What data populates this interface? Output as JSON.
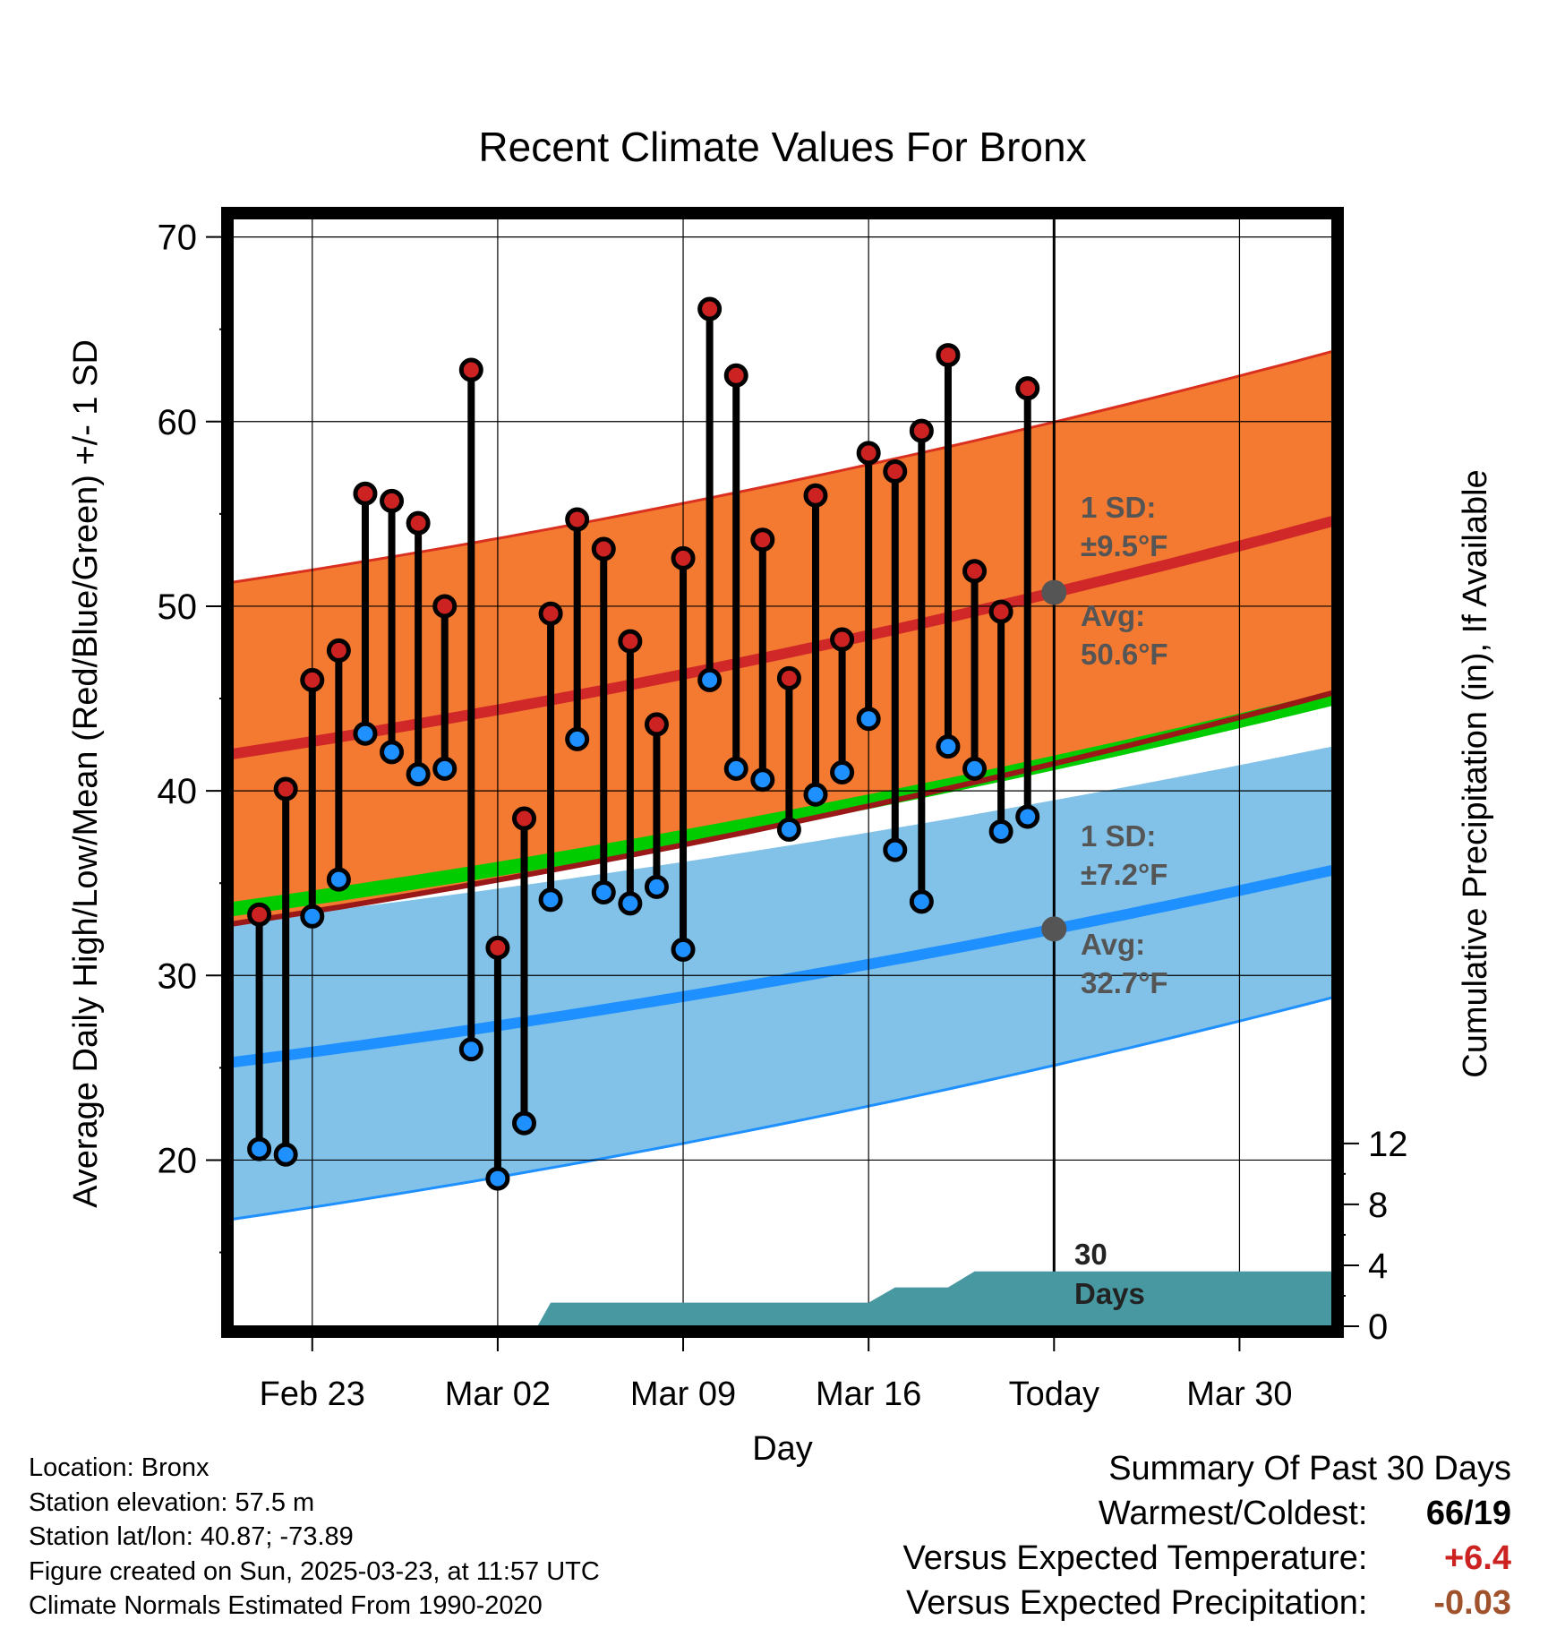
{
  "chart_data": {
    "type": "line",
    "title": "Recent Climate Values For Bronx",
    "xlabel": "Day",
    "ylabel_left": "Average Daily High/Low/Mean (Red/Blue/Green) +/- 1 SD",
    "ylabel_right": "Cumulative Precipitation (in), If Available",
    "x_tick_labels": [
      "Feb 23",
      "Mar 02",
      "Mar 09",
      "Mar 16",
      "Today",
      "Mar 30"
    ],
    "x_tick_days": [
      3,
      10,
      17,
      24,
      31,
      38
    ],
    "x_range_days": [
      0,
      41.5
    ],
    "y_left_range": [
      11,
      71
    ],
    "y_left_ticks": [
      20,
      30,
      40,
      50,
      60,
      70
    ],
    "y_right_range": [
      0,
      72.7
    ],
    "y_right_ticks": [
      0,
      4,
      8,
      12
    ],
    "today_day": 31,
    "normal_high": {
      "start": 42,
      "end": 54.6,
      "sd_upper_start": 51.3,
      "sd_upper_end": 63.8,
      "sd_lower_start": 32.8,
      "sd_lower_end": 45.3
    },
    "normal_low": {
      "start": 25.3,
      "end": 35.7,
      "sd_upper_start": 32.9,
      "sd_upper_end": 42.4,
      "sd_lower_start": 16.8,
      "sd_lower_end": 28.8
    },
    "normal_mean_green": {
      "start": 33.6,
      "end": 45
    },
    "observed": {
      "days": [
        1,
        2,
        3,
        4,
        5,
        6,
        7,
        8,
        9,
        10,
        11,
        12,
        13,
        14,
        15,
        16,
        17,
        18,
        19,
        20,
        21,
        22,
        23,
        24,
        25,
        26,
        27,
        28,
        29,
        30
      ],
      "highs": [
        33.3,
        40.1,
        46,
        47.6,
        56.1,
        55.7,
        54.5,
        50,
        62.8,
        31.5,
        38.5,
        49.6,
        54.7,
        53.1,
        48.1,
        43.6,
        52.6,
        66.1,
        62.5,
        53.6,
        46.1,
        56,
        48.2,
        58.3,
        57.3,
        59.5,
        63.6,
        51.9,
        49.7,
        61.8
      ],
      "lows": [
        20.6,
        20.3,
        33.2,
        35.2,
        43.1,
        42.1,
        40.9,
        41.2,
        26,
        19,
        22,
        34.1,
        42.8,
        34.5,
        33.9,
        34.8,
        31.4,
        46,
        41.2,
        40.6,
        37.9,
        39.8,
        41,
        43.9,
        36.8,
        34,
        42.4,
        41.2,
        37.8,
        38.6
      ]
    },
    "precip_cumulative": {
      "days": [
        0,
        11.5,
        12,
        24,
        25,
        27,
        28,
        41.5
      ],
      "values": [
        0,
        0,
        1.55,
        1.55,
        2.55,
        2.55,
        3.6,
        3.6
      ]
    },
    "annotations": {
      "high_sd_line1": "1 SD:",
      "high_sd_line2": "±9.5°F",
      "high_avg_line1": "Avg:",
      "high_avg_line2": "50.6°F",
      "low_sd_line1": "1 SD:",
      "low_sd_line2": "±7.2°F",
      "low_avg_line1": "Avg:",
      "low_avg_line2": "32.7°F",
      "days_line1": "30",
      "days_line2": "Days"
    },
    "grid": true,
    "colors": {
      "high_band": "#F37A30",
      "high_line": "#D02828",
      "low_band": "#82C2E8",
      "low_line": "#1E90FF",
      "mean_band": "#00CC00",
      "precip": "#4798A0",
      "high_dot": "#CC2222",
      "low_dot": "#1E90FF",
      "annot": "#555555"
    }
  },
  "meta": {
    "location": "Location: Bronx",
    "elevation": "Station elevation: 57.5 m",
    "latlon": "Station lat/lon: 40.87; -73.89",
    "created": "Figure created on Sun, 2025-03-23, at 11:57 UTC",
    "normals": "Climate Normals Estimated From 1990-2020"
  },
  "summary": {
    "title": "Summary Of Past 30 Days",
    "warm_cold_label": "Warmest/Coldest:",
    "warm": "66",
    "cold": "19",
    "temp_label": "Versus Expected Temperature:",
    "temp_value": "+6.4",
    "temp_color": "#CC2222",
    "precip_label": "Versus Expected Precipitation:",
    "precip_value": "-0.03",
    "precip_color": "#A0522D"
  }
}
